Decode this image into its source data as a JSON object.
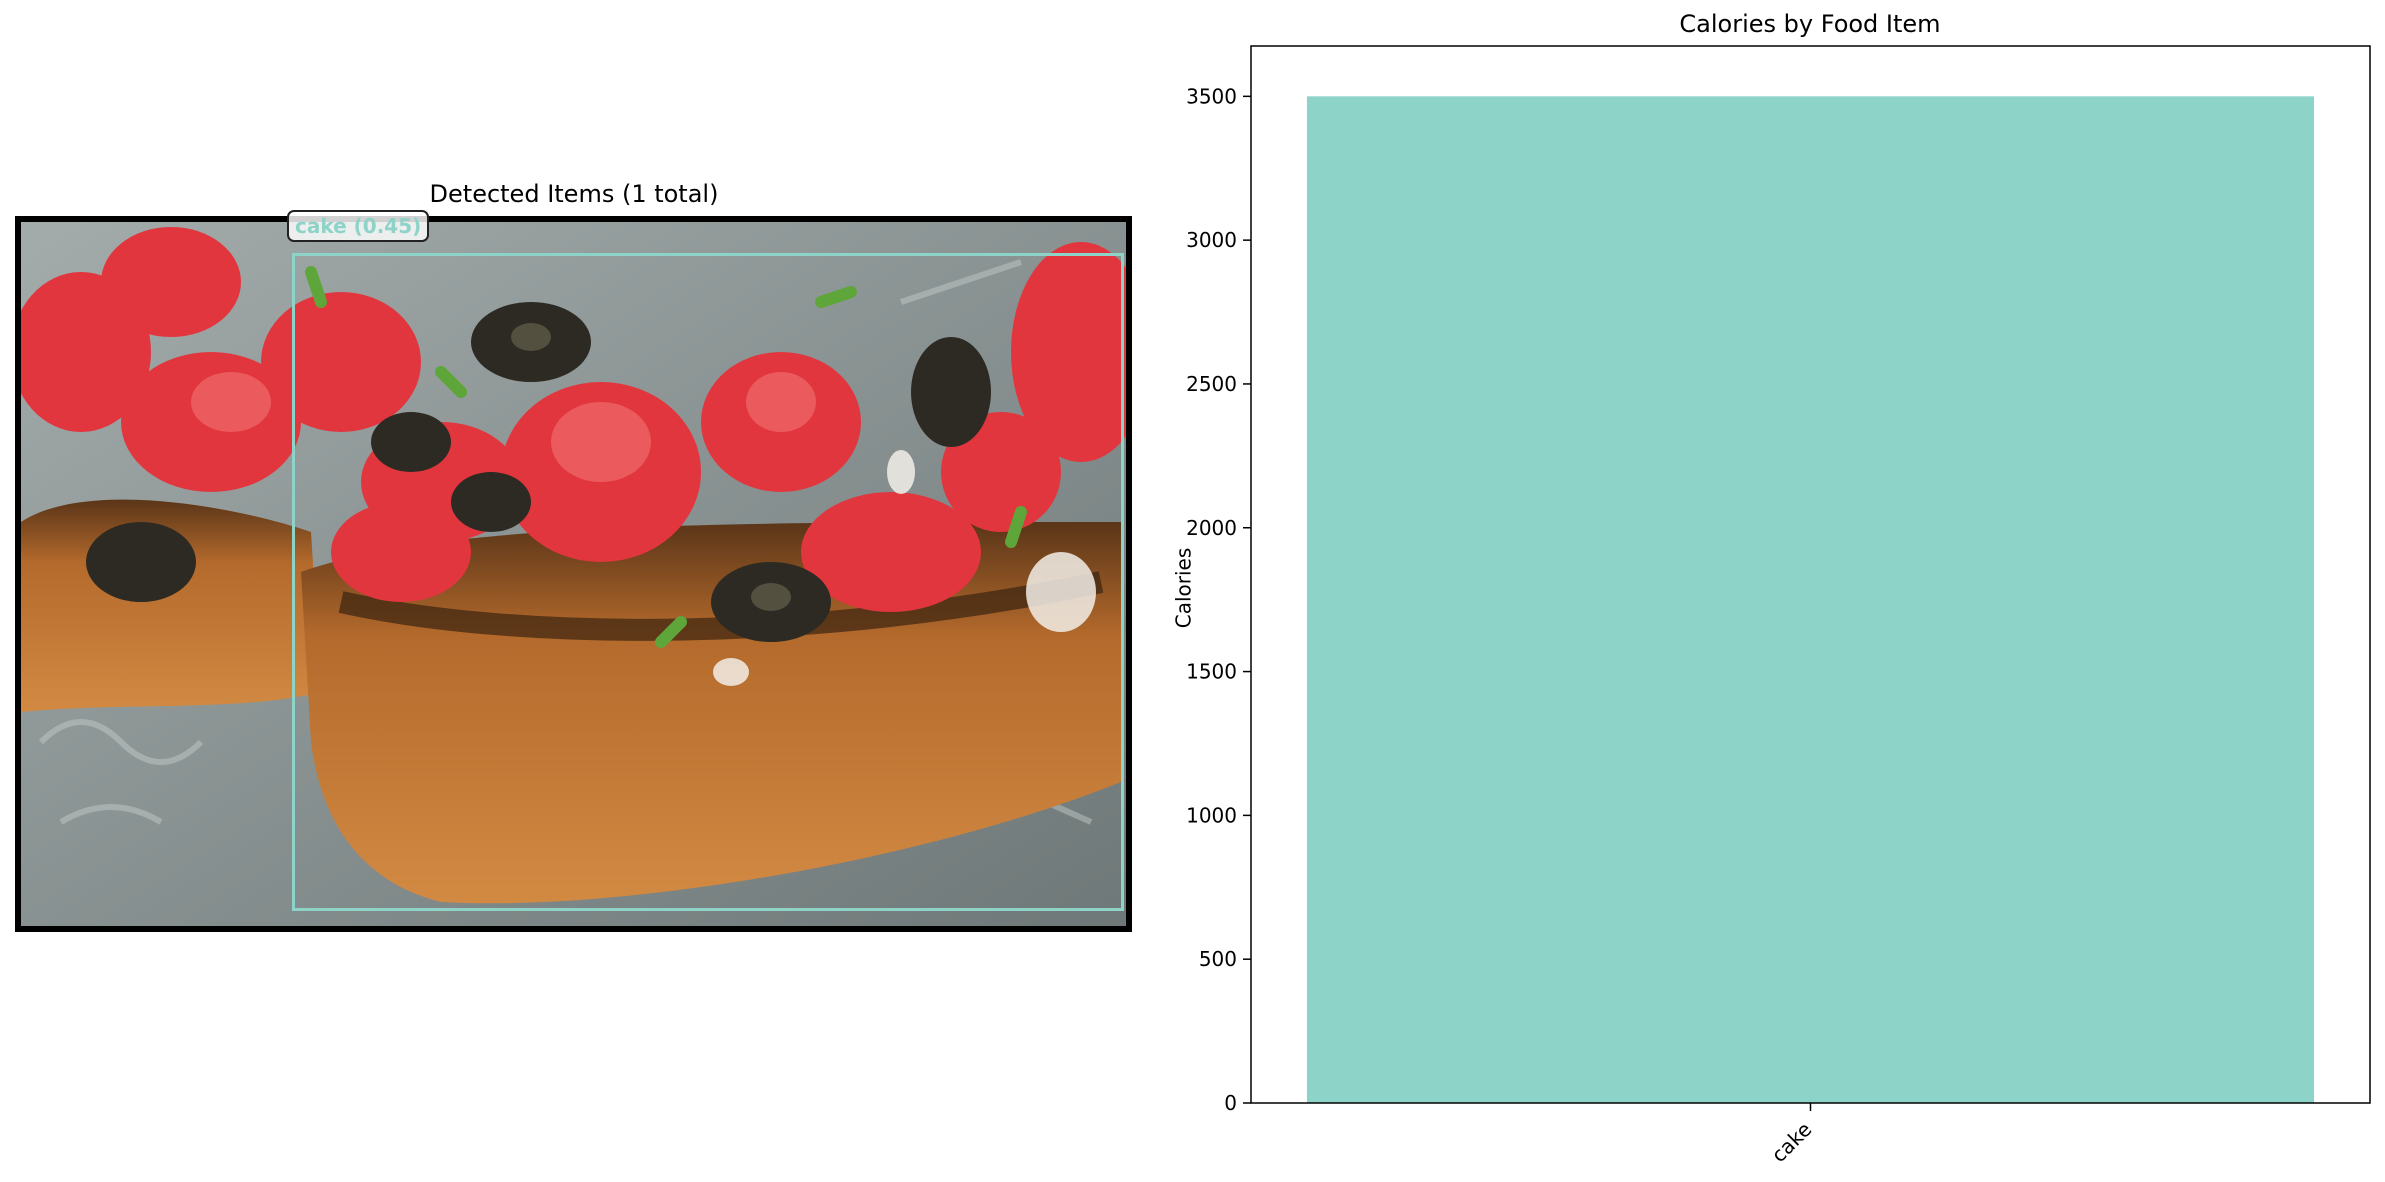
{
  "detection": {
    "title": "Detected Items (1 total)",
    "box_label": "cake (0.45)",
    "box_color": "#8dd3c7"
  },
  "chart_data": {
    "type": "bar",
    "title": "Calories by Food Item",
    "xlabel": "",
    "ylabel": "Calories",
    "categories": [
      "cake"
    ],
    "values": [
      3500
    ],
    "ylim": [
      0,
      3675
    ],
    "yticks": [
      0,
      500,
      1000,
      1500,
      2000,
      2500,
      3000,
      3500
    ],
    "bar_color": "#8dd3c7",
    "grid": false
  }
}
